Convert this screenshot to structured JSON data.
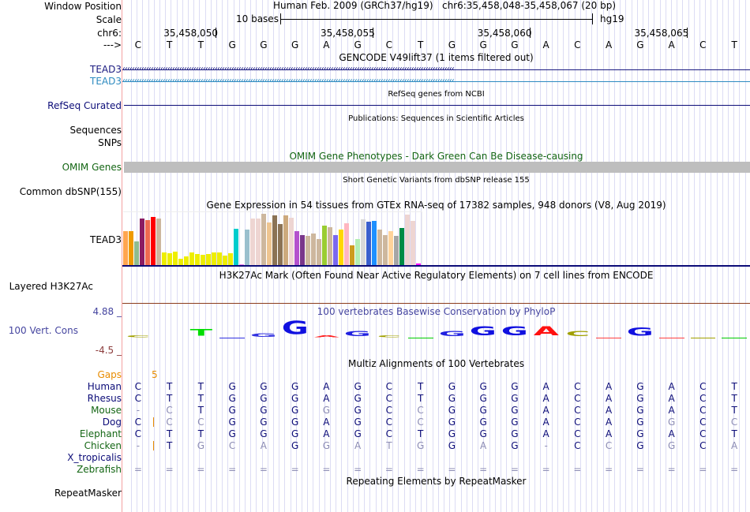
{
  "header": {
    "assembly_title": "Human Feb. 2009 (GRCh37/hg19)",
    "position": "chr6:35,458,048-35,458,067 (20 bp)",
    "scale_label": "10 bases",
    "scale_assembly": "hg19",
    "chrom_label": "chr6:",
    "ticks": [
      "35,458,050",
      "35,458,055",
      "35,458,060",
      "35,458,065"
    ],
    "strand_arrow": "--->"
  },
  "sequence": [
    "C",
    "T",
    "T",
    "G",
    "G",
    "G",
    "A",
    "G",
    "C",
    "T",
    "G",
    "G",
    "G",
    "A",
    "C",
    "A",
    "G",
    "A",
    "C",
    "T"
  ],
  "track_labels": {
    "window_position": "Window Position",
    "scale": "Scale",
    "chr": "chr6:",
    "arrow": "--->",
    "gencode_1": "TEAD3",
    "gencode_2": "TEAD3",
    "refseq": "RefSeq Curated",
    "sequences": "Sequences",
    "snps": "SNPs",
    "omim": "OMIM Genes",
    "dbsnp": "Common dbSNP(155)",
    "gtex": "TEAD3",
    "h3k27ac": "Layered H3K27Ac",
    "cons": "100 Vert. Cons",
    "cons_max": "4.88 _",
    "cons_min": "-4.5 _",
    "gaps": "Gaps",
    "repeatmasker": "RepeatMasker"
  },
  "track_titles": {
    "gencode": "GENCODE V49lift37 (1 items filtered out)",
    "refseq": "RefSeq genes from NCBI",
    "publications": "Publications: Sequences in Scientific Articles",
    "omim": "OMIM Gene Phenotypes - Dark Green Can Be Disease-causing",
    "dbsnp": "Short Genetic Variants from dbSNP release 155",
    "gtex": "Gene Expression in 54 tissues from GTEx RNA-seq of 17382 samples, 948 donors (V8, Aug 2019)",
    "h3k27ac": "H3K27Ac Mark (Often Found Near Active Regulatory Elements) on 7 cell lines from ENCODE",
    "cons": "100 vertebrates Basewise Conservation by PhyloP",
    "multiz": "Multiz Alignments of 100 Vertebrates",
    "repeatmasker": "Repeating Elements by RepeatMasker"
  },
  "colors": {
    "gencode_1": "#1a1a80",
    "gencode_2": "#2e8bc0",
    "refseq": "#0c0c78",
    "omim": "#146614",
    "omim_bar": "#bebebe",
    "cons_label": "#4646a0",
    "cons_range": "#8c3c3c",
    "gaps": "#e88c00",
    "species_dark": "#0c0c78",
    "species_green": "#146614",
    "match": "#0c0c78",
    "mismatch": "#8c8cb4"
  },
  "gtex": {
    "gene": "TEAD3",
    "values": [
      0.66,
      0.67,
      0.47,
      0.91,
      0.88,
      0.94,
      0.91,
      0.25,
      0.24,
      0.27,
      0.13,
      0.18,
      0.25,
      0.22,
      0.21,
      0.22,
      0.25,
      0.25,
      0.2,
      0.24,
      0.71,
      0.03,
      0.69,
      0.91,
      0.91,
      1.0,
      0.84,
      0.97,
      0.8,
      0.97,
      0.92,
      0.66,
      0.59,
      0.58,
      0.62,
      0.52,
      0.77,
      0.74,
      0.59,
      0.7,
      0.82,
      0.4,
      0.52,
      0.89,
      0.85,
      0.86,
      0.7,
      0.59,
      0.67,
      0.58,
      0.72,
      0.98,
      0.87,
      0.05
    ],
    "colors": [
      "#FFA54F",
      "#EE9A00",
      "#8FBC8F",
      "#8B1C62",
      "#EE6A50",
      "#FF0000",
      "#CDB79E",
      "#EEEE00",
      "#EEEE00",
      "#EEEE00",
      "#EEEE00",
      "#EEEE00",
      "#EEEE00",
      "#EEEE00",
      "#EEEE00",
      "#EEEE00",
      "#EEEE00",
      "#EEEE00",
      "#EEEE00",
      "#EEEE00",
      "#00CDCD",
      "#EE82EE",
      "#9AC0CD",
      "#EED5D2",
      "#EED5D2",
      "#CDB79E",
      "#EEC591",
      "#8B7355",
      "#8B7355",
      "#CDAA7D",
      "#EED5D2",
      "#B452CD",
      "#7A378B",
      "#CDB79E",
      "#CDB79E",
      "#CDB79E",
      "#9ACD32",
      "#CDB79E",
      "#7B68EE",
      "#FFD700",
      "#FFB6C1",
      "#CD9B1D",
      "#B4EEB4",
      "#D9D9D9",
      "#3A5FCD",
      "#1E90FF",
      "#CDB79E",
      "#CDB79E",
      "#FFD39B",
      "#A6A6A6",
      "#008B45",
      "#EED5D2",
      "#EED5D2",
      "#FF00FF"
    ]
  },
  "conservation": {
    "glyphs": [
      {
        "base": "C",
        "color": "#a0a000",
        "height": 0.15
      },
      {
        "base": "",
        "color": "",
        "height": 0
      },
      {
        "base": "T",
        "color": "#00dd00",
        "height": 0.45
      },
      {
        "base": "",
        "color": "#3030e0",
        "height": 0.05
      },
      {
        "base": "G",
        "color": "#3030e0",
        "height": 0.25
      },
      {
        "base": "G",
        "color": "#1010e0",
        "height": 0.9
      },
      {
        "base": "A",
        "color": "#ff2020",
        "height": 0.15
      },
      {
        "base": "G",
        "color": "#2020e0",
        "height": 0.35
      },
      {
        "base": "C",
        "color": "#a0a000",
        "height": 0.1
      },
      {
        "base": "",
        "color": "#00cc00",
        "height": 0.05
      },
      {
        "base": "G",
        "color": "#2020e0",
        "height": 0.35
      },
      {
        "base": "G",
        "color": "#1010e0",
        "height": 0.6
      },
      {
        "base": "G",
        "color": "#1010e0",
        "height": 0.6
      },
      {
        "base": "A",
        "color": "#ff1010",
        "height": 0.6
      },
      {
        "base": "C",
        "color": "#a0a000",
        "height": 0.35
      },
      {
        "base": "",
        "color": "#ff4040",
        "height": 0.03
      },
      {
        "base": "G",
        "color": "#1010e0",
        "height": 0.55
      },
      {
        "base": "",
        "color": "#ff4040",
        "height": 0.03
      },
      {
        "base": "",
        "color": "#a0a000",
        "height": 0.03
      },
      {
        "base": "",
        "color": "#00cc00",
        "height": 0.05
      }
    ]
  },
  "multiz": {
    "gaps_value": "5",
    "species": [
      {
        "name": "Human",
        "color": "dark",
        "bases": [
          "C",
          "T",
          "T",
          "G",
          "G",
          "G",
          "A",
          "G",
          "C",
          "T",
          "G",
          "G",
          "G",
          "A",
          "C",
          "A",
          "G",
          "A",
          "C",
          "T"
        ],
        "mismatch": []
      },
      {
        "name": "Rhesus",
        "color": "dark",
        "bases": [
          "C",
          "T",
          "T",
          "G",
          "G",
          "G",
          "A",
          "G",
          "C",
          "T",
          "G",
          "G",
          "G",
          "A",
          "C",
          "A",
          "G",
          "A",
          "C",
          "T"
        ],
        "mismatch": []
      },
      {
        "name": "Mouse",
        "color": "green",
        "bases": [
          "-",
          "C",
          "T",
          "G",
          "G",
          "G",
          "G",
          "G",
          "C",
          "C",
          "G",
          "G",
          "G",
          "A",
          "C",
          "A",
          "G",
          "A",
          "C",
          "T"
        ],
        "mismatch": [
          0,
          1,
          6,
          9
        ]
      },
      {
        "name": "Dog",
        "color": "dark",
        "bases": [
          "C",
          "C",
          "C",
          "G",
          "G",
          "G",
          "A",
          "G",
          "C",
          "C",
          "G",
          "G",
          "G",
          "A",
          "C",
          "A",
          "G",
          "G",
          "C",
          "C"
        ],
        "mismatch": [
          1,
          2,
          9,
          17,
          19
        ],
        "insert_after": 0
      },
      {
        "name": "Elephant",
        "color": "green",
        "bases": [
          "C",
          "T",
          "T",
          "G",
          "G",
          "G",
          "A",
          "G",
          "C",
          "T",
          "G",
          "G",
          "G",
          "A",
          "C",
          "A",
          "G",
          "A",
          "C",
          "T"
        ],
        "mismatch": []
      },
      {
        "name": "Chicken",
        "color": "green",
        "bases": [
          "-",
          "T",
          "G",
          "C",
          "A",
          "G",
          "G",
          "A",
          "T",
          "G",
          "G",
          "A",
          "G",
          "-",
          "C",
          "C",
          "G",
          "G",
          "C",
          "A"
        ],
        "mismatch": [
          0,
          2,
          3,
          4,
          6,
          7,
          8,
          9,
          11,
          13,
          15,
          17,
          19
        ],
        "insert_after": 0
      },
      {
        "name": "X_tropicalis",
        "color": "dark",
        "bases": [],
        "mismatch": []
      },
      {
        "name": "Zebrafish",
        "color": "green",
        "bases": [
          "=",
          "=",
          "=",
          "=",
          "=",
          "=",
          "=",
          "=",
          "=",
          "=",
          "=",
          "=",
          "=",
          "=",
          "=",
          "=",
          "=",
          "=",
          "=",
          "="
        ],
        "mismatch": [
          0,
          1,
          2,
          3,
          4,
          5,
          6,
          7,
          8,
          9,
          10,
          11,
          12,
          13,
          14,
          15,
          16,
          17,
          18,
          19
        ]
      }
    ]
  }
}
